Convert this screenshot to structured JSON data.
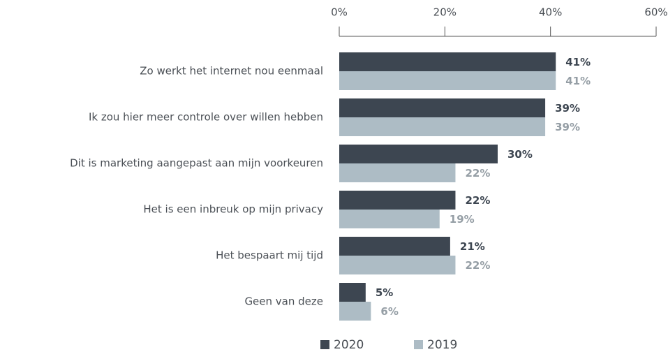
{
  "chart_data": {
    "type": "bar",
    "orientation": "horizontal",
    "categories": [
      "Zo werkt het internet nou eenmaal",
      "Ik zou hier meer controle over willen hebben",
      "Dit is marketing aangepast aan mijn voorkeuren",
      "Het is een inbreuk op mijn privacy",
      "Het bespaart mij tijd",
      "Geen van deze"
    ],
    "series": [
      {
        "name": "2020",
        "color": "#3d4651",
        "label_color": "#3d4651",
        "values": [
          41,
          39,
          30,
          22,
          21,
          5
        ],
        "value_labels": [
          "41%",
          "39%",
          "30%",
          "22%",
          "21%",
          "5%"
        ]
      },
      {
        "name": "2019",
        "color": "#adbcc5",
        "label_color": "#959ea5",
        "values": [
          41,
          39,
          22,
          19,
          22,
          6
        ],
        "value_labels": [
          "41%",
          "39%",
          "22%",
          "19%",
          "22%",
          "6%"
        ]
      }
    ],
    "xlim": [
      0,
      60
    ],
    "xticks": [
      {
        "value": 0,
        "label": "0%"
      },
      {
        "value": 20,
        "label": "20%"
      },
      {
        "value": 40,
        "label": "40%"
      },
      {
        "value": 60,
        "label": "60%"
      }
    ],
    "legend": "bottom"
  }
}
